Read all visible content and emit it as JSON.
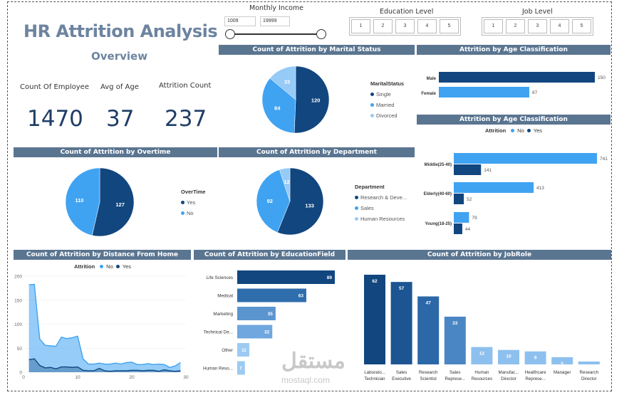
{
  "header": {
    "title": "HR Attrition Analysis",
    "subtitle": "Overview"
  },
  "kpis": [
    {
      "label": "Count Of Employee",
      "value": "1470"
    },
    {
      "label": "Avg of Age",
      "value": "37"
    },
    {
      "label": "Attrition Count",
      "value": "237"
    }
  ],
  "filters": {
    "monthly_income": {
      "label": "Monthly Income",
      "min": "1009",
      "max": "19999"
    },
    "education_level": {
      "label": "Education Level",
      "options": [
        "1",
        "2",
        "3",
        "4",
        "5"
      ]
    },
    "job_level": {
      "label": "Job Level",
      "options": [
        "1",
        "2",
        "3",
        "4",
        "5"
      ]
    }
  },
  "colors": {
    "dark": "#12467f",
    "mid": "#3fa3f2",
    "light": "#96caf7",
    "header_bg": "#5a7590"
  },
  "chart_data": [
    {
      "type": "pie",
      "title": "Count of Attrition by Marital Status",
      "legend_title": "MaritalStatus",
      "labels": [
        "Single",
        "Married",
        "Divorced"
      ],
      "values": [
        120,
        84,
        33
      ]
    },
    {
      "type": "bar",
      "title": "Attrition by Age Classification",
      "orientation": "horizontal",
      "categories": [
        "Male",
        "Female"
      ],
      "values": [
        150,
        87
      ]
    },
    {
      "type": "bar",
      "title": "Attrition by Age Classification",
      "orientation": "horizontal",
      "legend_title": "Attrition",
      "categories": [
        "Middle(25-40)",
        "Elderly(40-60)",
        "Young(18-25)"
      ],
      "series": [
        {
          "name": "No",
          "values": [
            741,
            413,
            79
          ]
        },
        {
          "name": "Yes",
          "values": [
            141,
            52,
            44
          ]
        }
      ]
    },
    {
      "type": "pie",
      "title": "Count of Attrition by Overtime",
      "legend_title": "OverTime",
      "labels": [
        "Yes",
        "No"
      ],
      "values": [
        127,
        110
      ]
    },
    {
      "type": "pie",
      "title": "Count of Attrition by Department",
      "legend_title": "Department",
      "labels": [
        "Research & Deve...",
        "Sales",
        "Human Resources"
      ],
      "values": [
        133,
        92,
        12
      ]
    },
    {
      "type": "area",
      "title": "Count of Attrition by Distance From Home",
      "legend_title": "Attrition",
      "x": [
        1,
        2,
        3,
        4,
        5,
        6,
        7,
        8,
        9,
        10,
        11,
        12,
        13,
        14,
        15,
        16,
        17,
        18,
        19,
        20,
        21,
        22,
        23,
        24,
        25,
        26,
        27,
        28,
        29
      ],
      "series": [
        {
          "name": "No",
          "values": [
            182,
            183,
            69,
            56,
            55,
            54,
            73,
            70,
            72,
            75,
            28,
            17,
            17,
            19,
            17,
            17,
            19,
            17,
            20,
            21,
            16,
            16,
            18,
            16,
            17,
            16,
            10,
            13,
            20
          ]
        },
        {
          "name": "Yes",
          "values": [
            26,
            28,
            14,
            9,
            10,
            7,
            11,
            11,
            10,
            11,
            4,
            3,
            3,
            8,
            3,
            2,
            3,
            3,
            3,
            4,
            4,
            3,
            4,
            4,
            2,
            5,
            3,
            2,
            3
          ]
        }
      ],
      "ylim": [
        0,
        200
      ],
      "yticks": [
        0,
        50,
        100,
        150,
        200
      ],
      "xticks": [
        0,
        10,
        20,
        30
      ]
    },
    {
      "type": "bar",
      "title": "Count of Attrition by EducationField",
      "orientation": "horizontal",
      "categories": [
        "Life Sciences",
        "Medical",
        "Marketing",
        "Technical De...",
        "Other",
        "Human Reso..."
      ],
      "values": [
        89,
        63,
        35,
        32,
        11,
        7
      ]
    },
    {
      "type": "bar",
      "title": "Count of Attrition by JobRole",
      "categories": [
        "Laborato... Technician",
        "Sales Executive",
        "Research Scientist",
        "Sales Represe...",
        "Human Resources",
        "Manufac... Director",
        "Healthcare Represe...",
        "Manager",
        "Research Director"
      ],
      "values": [
        62,
        57,
        47,
        33,
        12,
        10,
        9,
        5,
        2
      ]
    }
  ],
  "watermark": {
    "main": "مستقل",
    "sub": "mostaql.com"
  }
}
